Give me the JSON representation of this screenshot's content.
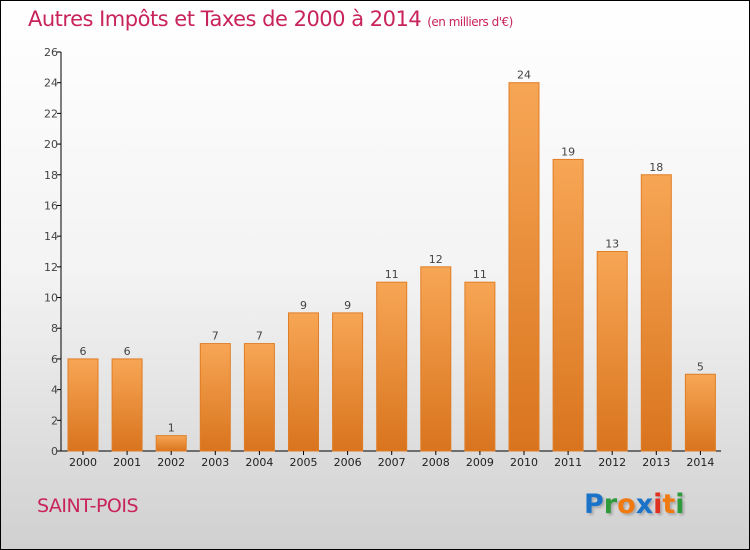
{
  "title": "Autres Impôts et Taxes de 2000 à 2014",
  "subtitle": "(en milliers d'€)",
  "city": "SAINT-POIS",
  "logo": {
    "text": "Proxiti",
    "letters": [
      [
        "P",
        "#1a73c8"
      ],
      [
        "r",
        "#2e9a3c"
      ],
      [
        "o",
        "#f07a10"
      ],
      [
        "x",
        "#1a73c8"
      ],
      [
        "i",
        "#e03020"
      ],
      [
        "t",
        "#f07a10"
      ],
      [
        "i",
        "#2e9a3c"
      ]
    ]
  },
  "chart_data": {
    "type": "bar",
    "title": "Autres Impôts et Taxes de 2000 à 2014",
    "ylabel": "en milliers d'€",
    "categories": [
      "2000",
      "2001",
      "2002",
      "2003",
      "2004",
      "2005",
      "2006",
      "2007",
      "2008",
      "2009",
      "2010",
      "2011",
      "2012",
      "2013",
      "2014"
    ],
    "values": [
      6,
      6,
      1,
      7,
      7,
      9,
      9,
      11,
      12,
      11,
      24,
      19,
      13,
      18,
      5
    ],
    "ylim": [
      0,
      26
    ],
    "yticks": [
      0,
      2,
      4,
      6,
      8,
      10,
      12,
      14,
      16,
      18,
      20,
      22,
      24,
      26
    ],
    "bar_color": "#f08a30",
    "grid": false
  }
}
